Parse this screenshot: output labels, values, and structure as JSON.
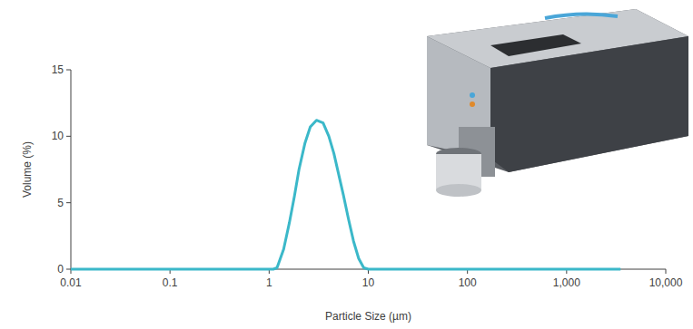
{
  "chart_data": {
    "type": "line",
    "xlabel": "Particle Size (µm)",
    "ylabel": "Volume (%)",
    "x": [
      0.01,
      1.1,
      1.2,
      1.4,
      1.6,
      1.8,
      2.0,
      2.3,
      2.6,
      3.0,
      3.5,
      4.0,
      4.5,
      5.0,
      5.6,
      6.3,
      7.1,
      8.0,
      9.0,
      10,
      3500
    ],
    "values": [
      0,
      0,
      0.1,
      1.5,
      3.5,
      5.5,
      7.5,
      9.5,
      10.7,
      11.2,
      11.0,
      10.0,
      8.7,
      7.2,
      5.6,
      3.8,
      2.1,
      0.8,
      0.1,
      0,
      0
    ],
    "color": "#3bb8c9",
    "log": "x",
    "xlim": [
      0.01,
      10000
    ],
    "ylim": [
      0,
      15
    ],
    "xticks": [
      0.01,
      0.1,
      1,
      10,
      100,
      {
        "value": 1000,
        "label": "1,000"
      },
      {
        "value": 10000,
        "label": "10,000"
      }
    ],
    "yticks": [
      0,
      5,
      10,
      15
    ]
  }
}
